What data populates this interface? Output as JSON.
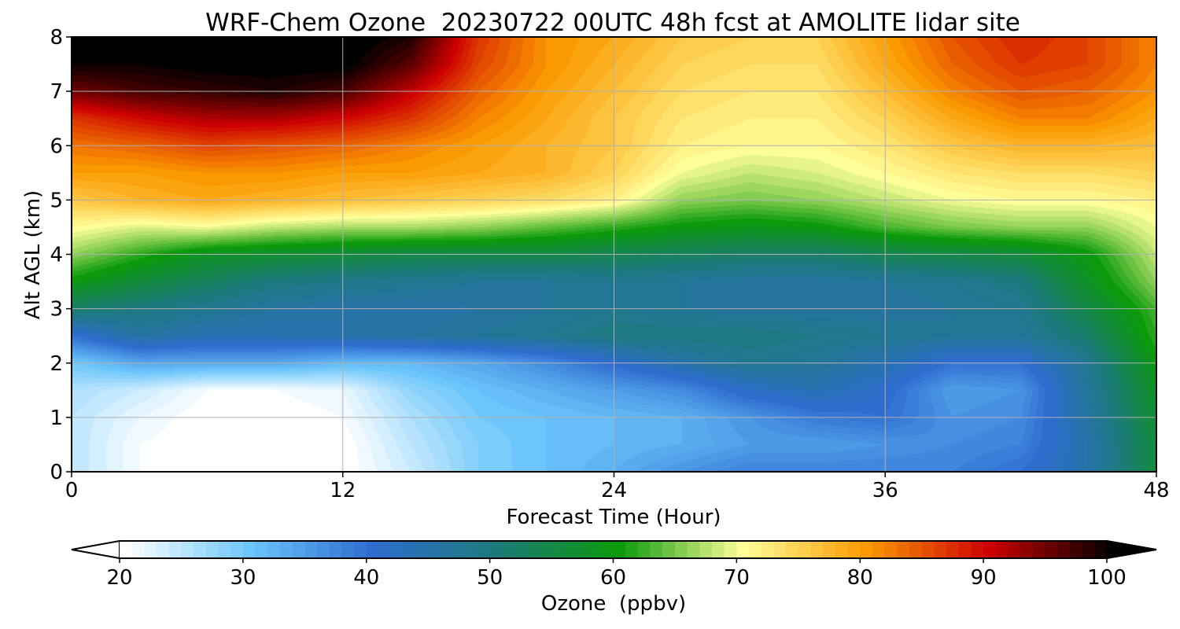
{
  "chart_data": {
    "type": "heatmap",
    "title": "WRF-Chem Ozone  20230722 00UTC 48h fcst at AMOLITE lidar site",
    "xlabel": "Forecast Time (Hour)",
    "ylabel": "Alt AGL (km)",
    "xlim": [
      0,
      48
    ],
    "ylim": [
      0,
      8
    ],
    "x_ticks": [
      "0",
      "12",
      "24",
      "36",
      "48"
    ],
    "y_ticks": [
      "0",
      "1",
      "2",
      "3",
      "4",
      "5",
      "6",
      "7",
      "8"
    ],
    "grid": true,
    "colorbar": {
      "label": "Ozone  (ppbv)",
      "range": [
        20,
        100
      ],
      "extend": "both",
      "ticks": [
        "20",
        "30",
        "40",
        "50",
        "60",
        "70",
        "80",
        "90",
        "100"
      ],
      "colors": [
        "#ffffff",
        "#6cc6fb",
        "#2f6cd0",
        "#1d7a7a",
        "#0a9a0a",
        "#ffff9a",
        "#fb9a00",
        "#cc0000",
        "#000000"
      ]
    },
    "x": [
      0,
      3,
      6,
      9,
      12,
      15,
      18,
      21,
      24,
      27,
      30,
      33,
      36,
      39,
      42,
      45,
      48
    ],
    "y": [
      0,
      0.5,
      1,
      1.5,
      2,
      2.5,
      3,
      3.5,
      4,
      4.5,
      5,
      5.5,
      6,
      6.5,
      7,
      7.5,
      8
    ],
    "values": [
      [
        25,
        21,
        20,
        20,
        20,
        24,
        29,
        31,
        33,
        36,
        38,
        38,
        38,
        38,
        40,
        45,
        56
      ],
      [
        25,
        21,
        20,
        20,
        20,
        25,
        29,
        31,
        32,
        33,
        35,
        35,
        36,
        37,
        38,
        45,
        56
      ],
      [
        25,
        22,
        20,
        20,
        21,
        26,
        30,
        31,
        32,
        33,
        36,
        39,
        40,
        36,
        37,
        46,
        57
      ],
      [
        26,
        24,
        21,
        21,
        22,
        28,
        31,
        33,
        35,
        37,
        42,
        44,
        41,
        35,
        36,
        47,
        58
      ],
      [
        30,
        34,
        34,
        34,
        32,
        32,
        34,
        37,
        41,
        45,
        48,
        47,
        44,
        40,
        40,
        48,
        60
      ],
      [
        40,
        46,
        44,
        44,
        45,
        46,
        47,
        48,
        50,
        50,
        50,
        49,
        48,
        47,
        47,
        52,
        62
      ],
      [
        52,
        50,
        48,
        46,
        45,
        45,
        46,
        47,
        48,
        47,
        46,
        46,
        46,
        47,
        48,
        55,
        63
      ],
      [
        60,
        56,
        53,
        50,
        49,
        48,
        47,
        47,
        48,
        47,
        46,
        46,
        47,
        48,
        50,
        58,
        66
      ],
      [
        66,
        62,
        58,
        57,
        56,
        55,
        55,
        55,
        54,
        53,
        52,
        52,
        54,
        55,
        56,
        60,
        68
      ],
      [
        71,
        69,
        70,
        68,
        67,
        67,
        66,
        64,
        62,
        60,
        59,
        60,
        63,
        65,
        66,
        66,
        70
      ],
      [
        76,
        78,
        79,
        78,
        77,
        76,
        75,
        74,
        72,
        66,
        65,
        66,
        68,
        70,
        71,
        71,
        72
      ],
      [
        80,
        80,
        81,
        81,
        80,
        80,
        79,
        78,
        75,
        70,
        68,
        69,
        71,
        73,
        74,
        74,
        75
      ],
      [
        83,
        84,
        86,
        85,
        84,
        82,
        80,
        78,
        76,
        72,
        71,
        71,
        73,
        76,
        78,
        78,
        77
      ],
      [
        87,
        90,
        92,
        92,
        90,
        87,
        82,
        79,
        76,
        73,
        72,
        72,
        75,
        79,
        82,
        82,
        79
      ],
      [
        95,
        97,
        98,
        99,
        97,
        91,
        84,
        80,
        77,
        74,
        73,
        73,
        77,
        82,
        85,
        84,
        81
      ],
      [
        100,
        100,
        101,
        101,
        101,
        96,
        86,
        81,
        78,
        75,
        74,
        74,
        79,
        84,
        87,
        86,
        82
      ],
      [
        101,
        101,
        102,
        102,
        102,
        99,
        87,
        81,
        79,
        76,
        75,
        75,
        80,
        85,
        88,
        86,
        82
      ]
    ]
  }
}
